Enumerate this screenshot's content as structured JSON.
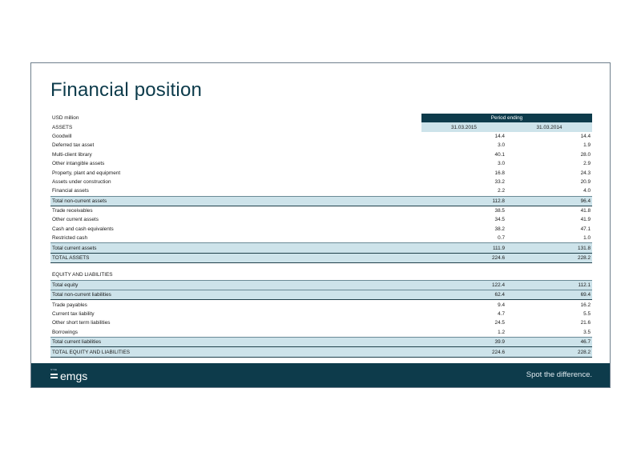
{
  "slide": {
    "title": "Financial position",
    "footer": {
      "logo_text": "emgs",
      "logo_small": "NYSE",
      "tagline": "Spot the difference."
    }
  },
  "table": {
    "unit_label": "USD million",
    "period_label": "Period ending",
    "section_assets": "ASSETS",
    "col1": "31.03.2015",
    "col2": "31.03.2014",
    "assets_rows": [
      {
        "label": "Goodwill",
        "v1": "14.4",
        "v2": "14.4"
      },
      {
        "label": "Deferred tax asset",
        "v1": "3.0",
        "v2": "1.9"
      },
      {
        "label": "Multi-client library",
        "v1": "40.1",
        "v2": "28.0"
      },
      {
        "label": "Other intangible assets",
        "v1": "3.0",
        "v2": "2.9"
      },
      {
        "label": "Property, plant and equipment",
        "v1": "16.8",
        "v2": "24.3"
      },
      {
        "label": "Assets under construction",
        "v1": "33.2",
        "v2": "20.9"
      },
      {
        "label": "Financial assets",
        "v1": "2.2",
        "v2": "4.0"
      }
    ],
    "total_noncurrent_assets": {
      "label": "Total non-current assets",
      "v1": "112.8",
      "v2": "96.4"
    },
    "current_rows": [
      {
        "label": "Trade receivables",
        "v1": "38.5",
        "v2": "41.8"
      },
      {
        "label": "Other current assets",
        "v1": "34.5",
        "v2": "41.9"
      },
      {
        "label": "Cash and cash equivalents",
        "v1": "38.2",
        "v2": "47.1"
      },
      {
        "label": "Restricted cash",
        "v1": "0.7",
        "v2": "1.0"
      }
    ],
    "total_current_assets": {
      "label": "Total current assets",
      "v1": "111.9",
      "v2": "131.8"
    },
    "total_assets": {
      "label": "TOTAL ASSETS",
      "v1": "224.6",
      "v2": "228.2"
    },
    "section_equity": "EQUITY AND LIABILITIES",
    "total_equity": {
      "label": "Total equity",
      "v1": "122.4",
      "v2": "112.1"
    },
    "total_noncurrent_liabilities": {
      "label": "Total non-current liabilities",
      "v1": "62.4",
      "v2": "69.4"
    },
    "liab_rows": [
      {
        "label": "Trade payables",
        "v1": "9.4",
        "v2": "16.2"
      },
      {
        "label": "Current tax liability",
        "v1": "4.7",
        "v2": "5.5"
      },
      {
        "label": "Other short term liabilities",
        "v1": "24.5",
        "v2": "21.6"
      },
      {
        "label": "Borrowings",
        "v1": "1.2",
        "v2": "3.5"
      }
    ],
    "total_current_liabilities": {
      "label": "Total current liabilities",
      "v1": "39.9",
      "v2": "46.7"
    },
    "total_equity_liabilities": {
      "label": "TOTAL EQUITY AND LIABILITIES",
      "v1": "224.6",
      "v2": "228.2"
    }
  }
}
